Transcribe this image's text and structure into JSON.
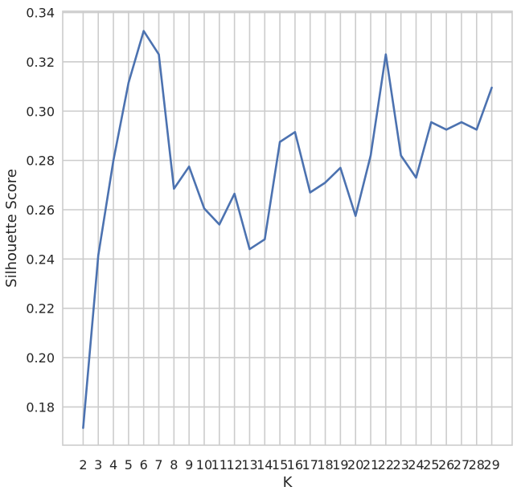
{
  "chart_data": {
    "type": "line",
    "xlabel": "K",
    "ylabel": "Silhouette Score",
    "x": [
      2,
      3,
      4,
      5,
      6,
      7,
      8,
      9,
      10,
      11,
      12,
      13,
      14,
      15,
      16,
      17,
      18,
      19,
      20,
      21,
      22,
      23,
      24,
      25,
      26,
      27,
      28,
      29
    ],
    "series": [
      {
        "values": [
          0.1715,
          0.2415,
          0.28,
          0.3115,
          0.3325,
          0.323,
          0.2685,
          0.2775,
          0.2605,
          0.254,
          0.2665,
          0.244,
          0.248,
          0.2875,
          0.2915,
          0.267,
          0.271,
          0.277,
          0.2575,
          0.282,
          0.323,
          0.282,
          0.273,
          0.2955,
          0.2925,
          0.2955,
          0.2925,
          0.3095
        ]
      }
    ],
    "xticks": [
      "2",
      "3",
      "4",
      "5",
      "6",
      "7",
      "8",
      "9",
      "10",
      "11",
      "12",
      "13",
      "14",
      "15",
      "16",
      "17",
      "18",
      "19",
      "20",
      "21",
      "22",
      "23",
      "24",
      "25",
      "26",
      "27",
      "28",
      "29"
    ],
    "yticks": [
      "0.18",
      "0.20",
      "0.22",
      "0.24",
      "0.26",
      "0.28",
      "0.30",
      "0.32",
      "0.34"
    ],
    "ytick_values": [
      0.18,
      0.2,
      0.22,
      0.24,
      0.26,
      0.28,
      0.3,
      0.32,
      0.34
    ],
    "xlim": [
      0.65,
      30.35
    ],
    "ylim": [
      0.1645,
      0.3405
    ],
    "grid": true,
    "line_color": "#4c72b0"
  }
}
